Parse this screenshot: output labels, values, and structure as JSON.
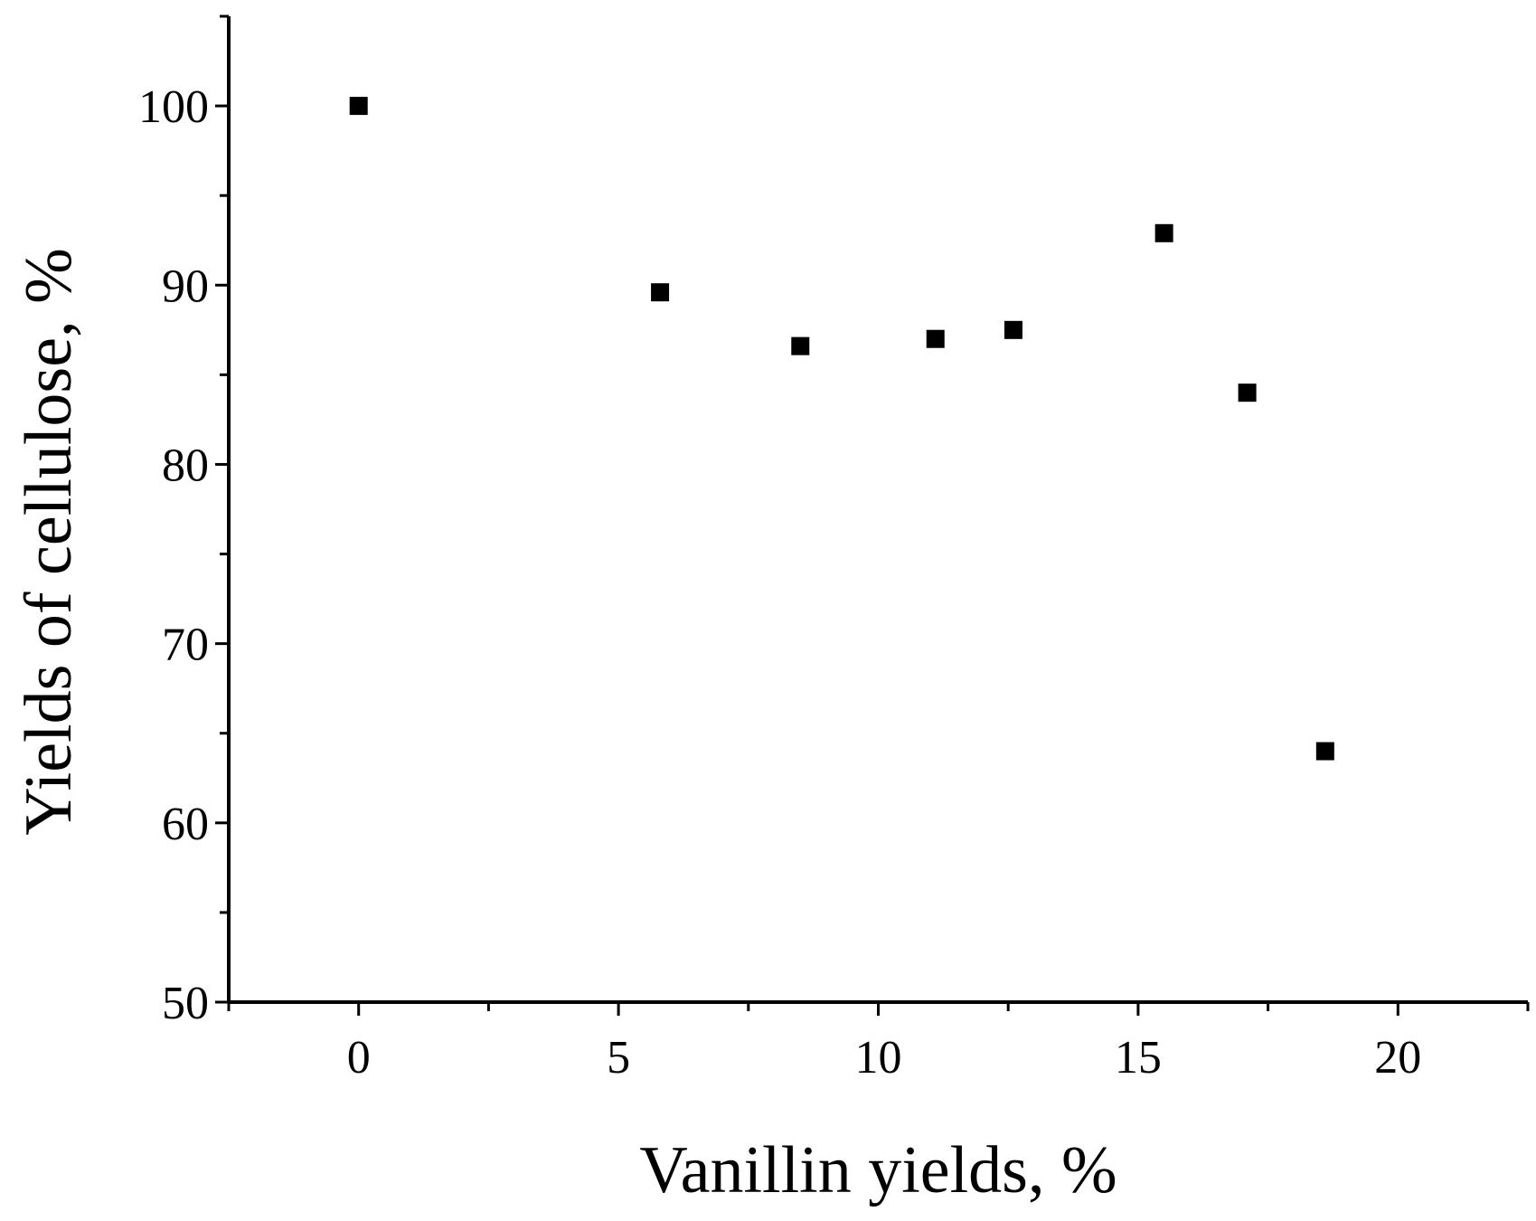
{
  "chart_data": {
    "type": "scatter",
    "xlabel": "Vanillin yields, %",
    "ylabel": "Yields of cellulose, %",
    "xlim": [
      -2.5,
      22.5
    ],
    "ylim": [
      50,
      105
    ],
    "x_ticks": [
      0,
      5,
      10,
      15,
      20
    ],
    "y_ticks": [
      50,
      60,
      70,
      80,
      90,
      100
    ],
    "grid": false,
    "marker_color": "#000000",
    "marker_shape": "square",
    "series": [
      {
        "x": [
          0,
          5.8,
          8.5,
          11.1,
          12.6,
          15.5,
          17.1,
          18.6
        ],
        "y": [
          100,
          89.6,
          86.6,
          87.0,
          87.5,
          92.9,
          84.0,
          64.0
        ]
      }
    ]
  }
}
